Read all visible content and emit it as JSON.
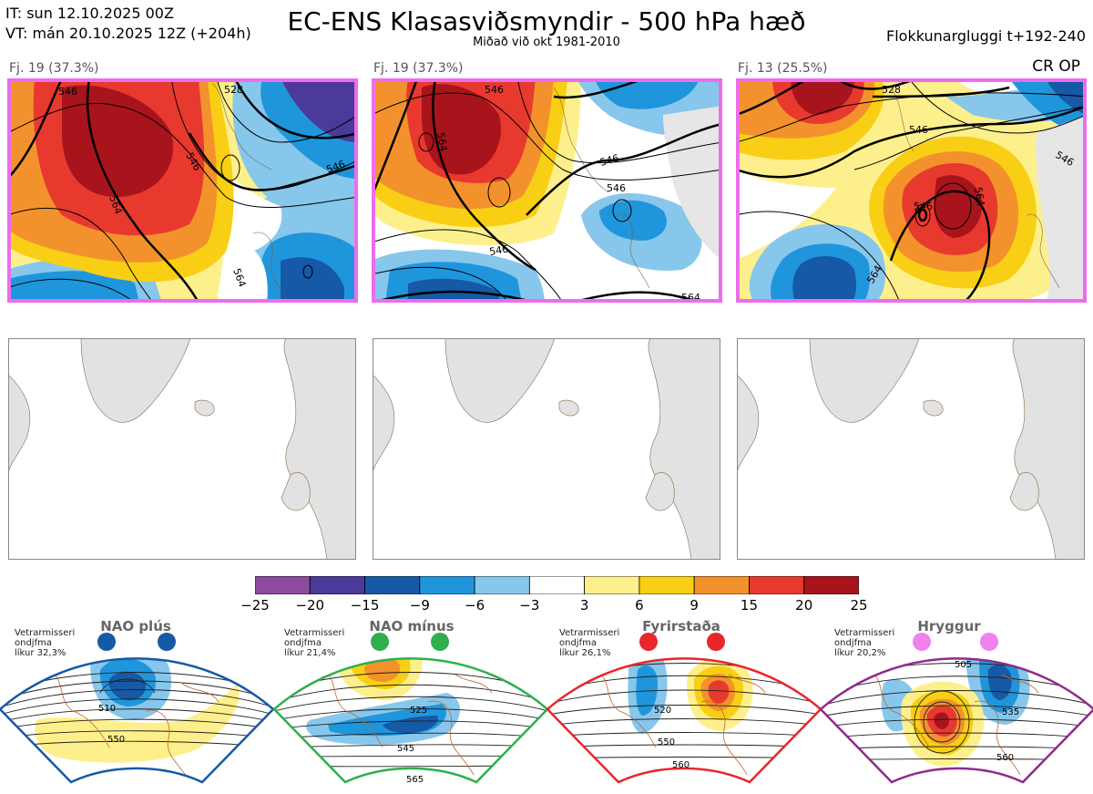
{
  "header": {
    "it": "IT: sun 12.10.2025 00Z",
    "vt": "VT: mán 20.10.2025 12Z  (+204h)",
    "title": "EC-ENS Klasasviðsmyndir - 500 hPa hæð",
    "subtitle": "Miðað við okt 1981-2010",
    "window": "Flokkunargluggi t+192-240",
    "corner": "CR OP"
  },
  "clusters": [
    {
      "label": "Fj. 19 (37.3%)",
      "contours": [
        "546",
        "564",
        "546",
        "546",
        "564",
        "528"
      ]
    },
    {
      "label": "Fj. 19 (37.3%)",
      "contours": [
        "564",
        "546",
        "546",
        "546",
        "564",
        "546"
      ]
    },
    {
      "label": "Fj. 13 (25.5%)",
      "contours": [
        "528",
        "546",
        "546",
        "546",
        "564",
        "564"
      ]
    }
  ],
  "colorbar": {
    "ticks": [
      "−25",
      "−20",
      "−15",
      "−9",
      "−6",
      "−3",
      "3",
      "6",
      "9",
      "15",
      "20",
      "25"
    ],
    "colors": [
      "#8e4a9c",
      "#4b3a9a",
      "#1659a6",
      "#1f96dc",
      "#87c7ec",
      "#ffffff",
      "#fdf08c",
      "#f8cf14",
      "#f3922c",
      "#e8392f",
      "#a8141c"
    ]
  },
  "regimes": [
    {
      "name": "NAO plús",
      "info": [
        "Vetrarmisseri",
        "ondjfma",
        "líkur 32,3%"
      ],
      "dot_color": "#1659a6",
      "border": "#1659a6",
      "contours": [
        "510",
        "550"
      ]
    },
    {
      "name": "NAO mínus",
      "info": [
        "Vetrarmisseri",
        "ondjfma",
        "líkur 21,4%"
      ],
      "dot_color": "#2fae4e",
      "border": "#2fae4e",
      "contours": [
        "525",
        "545",
        "565"
      ]
    },
    {
      "name": "Fyrirstaða",
      "info": [
        "Vetrarmisseri",
        "ondjfma",
        "líkur 26,1%"
      ],
      "dot_color": "#e8262c",
      "border": "#e8262c",
      "contours": [
        "520",
        "550",
        "560"
      ]
    },
    {
      "name": "Hryggur",
      "info": [
        "Vetrarmisseri",
        "ondjfma",
        "líkur 20,2%"
      ],
      "dot_color": "#ee82ee",
      "border": "#8e2a8c",
      "contours": [
        "505",
        "535",
        "560"
      ]
    }
  ]
}
